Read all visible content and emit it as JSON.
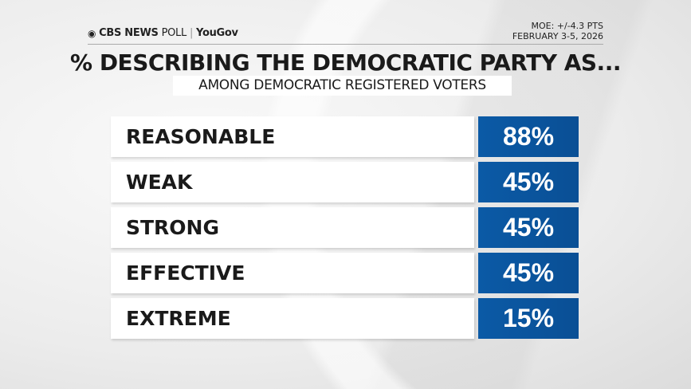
{
  "header": {
    "brand": "CBS NEWS",
    "poll": "POLL",
    "partner": "YouGov",
    "moe": "MOE: +/-4.3 PTS",
    "date": "FEBRUARY 3-5, 2026"
  },
  "chart_data": {
    "type": "table",
    "title": "% DESCRIBING THE DEMOCRATIC PARTY AS...",
    "subtitle": "AMONG DEMOCRATIC REGISTERED VOTERS",
    "categories": [
      "REASONABLE",
      "WEAK",
      "STRONG",
      "EFFECTIVE",
      "EXTREME"
    ],
    "values": [
      88,
      45,
      45,
      45,
      15
    ],
    "labels": [
      "88%",
      "45%",
      "45%",
      "45%",
      "15%"
    ],
    "colors": {
      "value_box": "#0b5aa6"
    }
  }
}
